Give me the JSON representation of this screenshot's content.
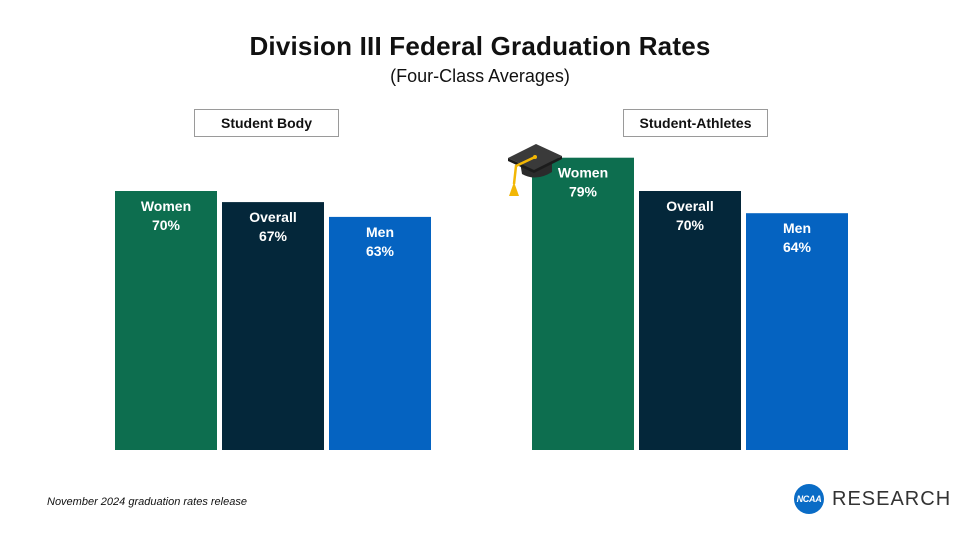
{
  "title": "Division III Federal Graduation Rates",
  "subtitle": "(Four-Class Averages)",
  "footnote": "November 2024 graduation rates release",
  "logo": {
    "badge": "NCAA",
    "word": "RESEARCH"
  },
  "icons": {
    "decoration": "graduation-cap-icon"
  },
  "colors": {
    "women": "#0d6e4f",
    "overall": "#04273a",
    "men": "#0563c1",
    "cap_tassel": "#f2b705",
    "logo": "#0a6cc6"
  },
  "chart_data": {
    "type": "bar",
    "groups": [
      "Student Body",
      "Student-Athletes"
    ],
    "categories": [
      "Women",
      "Overall",
      "Men"
    ],
    "series": [
      {
        "group": "Student Body",
        "values": [
          70,
          67,
          63
        ],
        "labels": [
          "70%",
          "67%",
          "63%"
        ]
      },
      {
        "group": "Student-Athletes",
        "values": [
          79,
          70,
          64
        ],
        "labels": [
          "79%",
          "70%",
          "64%"
        ]
      }
    ],
    "unit": "%",
    "grid": false,
    "axes_visible": false
  }
}
